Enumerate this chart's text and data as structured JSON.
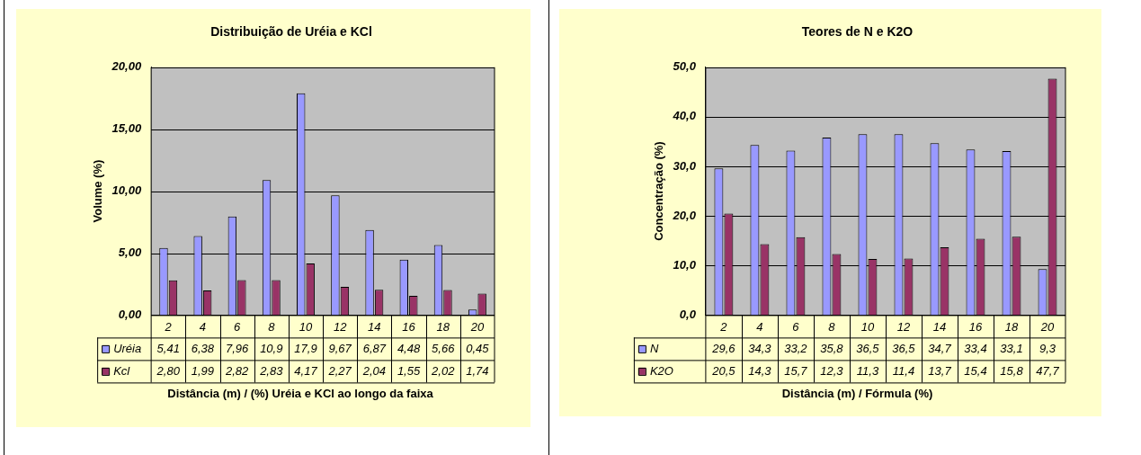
{
  "chart_data": [
    {
      "type": "bar",
      "title": "Distribuição de Uréia e KCl",
      "xlabel": "Distância (m) / (%) Uréia e KCl ao longo da faixa",
      "ylabel": "Volume (%)",
      "categories": [
        "2",
        "4",
        "6",
        "8",
        "10",
        "12",
        "14",
        "16",
        "18",
        "20"
      ],
      "series": [
        {
          "name": "Uréia",
          "color": "#9999ff",
          "values": [
            5.41,
            6.38,
            7.96,
            10.9,
            17.9,
            9.67,
            6.87,
            4.48,
            5.66,
            0.45
          ],
          "value_labels": [
            "5,41",
            "6,38",
            "7,96",
            "10,9",
            "17,9",
            "9,67",
            "6,87",
            "4,48",
            "5,66",
            "0,45"
          ]
        },
        {
          "name": "Kcl",
          "color": "#993366",
          "values": [
            2.8,
            1.99,
            2.82,
            2.83,
            4.17,
            2.27,
            2.04,
            1.55,
            2.02,
            1.74
          ],
          "value_labels": [
            "2,80",
            "1,99",
            "2,82",
            "2,83",
            "4,17",
            "2,27",
            "2,04",
            "1,55",
            "2,02",
            "1,74"
          ]
        }
      ],
      "ylim": [
        0,
        20
      ],
      "yticks": [
        {
          "value": 0,
          "label": "0,00"
        },
        {
          "value": 5,
          "label": "5,00"
        },
        {
          "value": 10,
          "label": "10,00"
        },
        {
          "value": 15,
          "label": "15,00"
        },
        {
          "value": 20,
          "label": "20,00"
        }
      ],
      "grid": "y",
      "legend": "bottom"
    },
    {
      "type": "bar",
      "title": "Teores de N e K2O",
      "xlabel": "Distância (m) / Fórmula (%)",
      "ylabel": "Concentração (%)",
      "categories": [
        "2",
        "4",
        "6",
        "8",
        "10",
        "12",
        "14",
        "16",
        "18",
        "20"
      ],
      "series": [
        {
          "name": "N",
          "color": "#9999ff",
          "values": [
            29.6,
            34.3,
            33.2,
            35.8,
            36.5,
            36.5,
            34.7,
            33.4,
            33.1,
            9.3
          ],
          "value_labels": [
            "29,6",
            "34,3",
            "33,2",
            "35,8",
            "36,5",
            "36,5",
            "34,7",
            "33,4",
            "33,1",
            "9,3"
          ]
        },
        {
          "name": "K2O",
          "color": "#993366",
          "values": [
            20.5,
            14.3,
            15.7,
            12.3,
            11.3,
            11.4,
            13.7,
            15.4,
            15.8,
            47.7
          ],
          "value_labels": [
            "20,5",
            "14,3",
            "15,7",
            "12,3",
            "11,3",
            "11,4",
            "13,7",
            "15,4",
            "15,8",
            "47,7"
          ]
        }
      ],
      "ylim": [
        0,
        50
      ],
      "yticks": [
        {
          "value": 0,
          "label": "0,0"
        },
        {
          "value": 10,
          "label": "10,0"
        },
        {
          "value": 20,
          "label": "20,0"
        },
        {
          "value": 30,
          "label": "30,0"
        },
        {
          "value": 40,
          "label": "40,0"
        },
        {
          "value": 50,
          "label": "50,0"
        }
      ],
      "grid": "y",
      "legend": "bottom"
    }
  ]
}
